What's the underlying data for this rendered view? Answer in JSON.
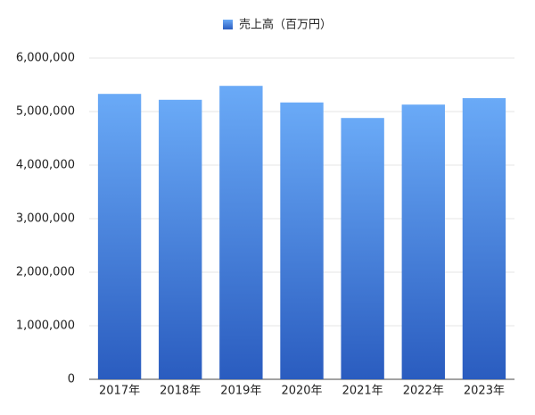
{
  "chart_data": {
    "type": "bar",
    "categories": [
      "2017年",
      "2018年",
      "2019年",
      "2020年",
      "2021年",
      "2022年",
      "2023年"
    ],
    "series": [
      {
        "name": "売上高（百万円）",
        "color": [
          "#6aaaf7",
          "#2a5cbf"
        ],
        "values": [
          5330000,
          5220000,
          5480000,
          5170000,
          4880000,
          5130000,
          5250000
        ]
      }
    ],
    "ylim": [
      0,
      6000000
    ],
    "yticks": [
      0,
      {
        "value": 1000000,
        "label": "1,000,000"
      },
      {
        "value": 2000000,
        "label": "2,000,000"
      },
      {
        "value": 3000000,
        "label": "3,000,000"
      },
      {
        "value": 4000000,
        "label": "4,000,000"
      },
      {
        "value": 5000000,
        "label": "5,000,000"
      },
      {
        "value": 6000000,
        "label": "6,000,000"
      }
    ],
    "grid": true,
    "legend": "top"
  }
}
